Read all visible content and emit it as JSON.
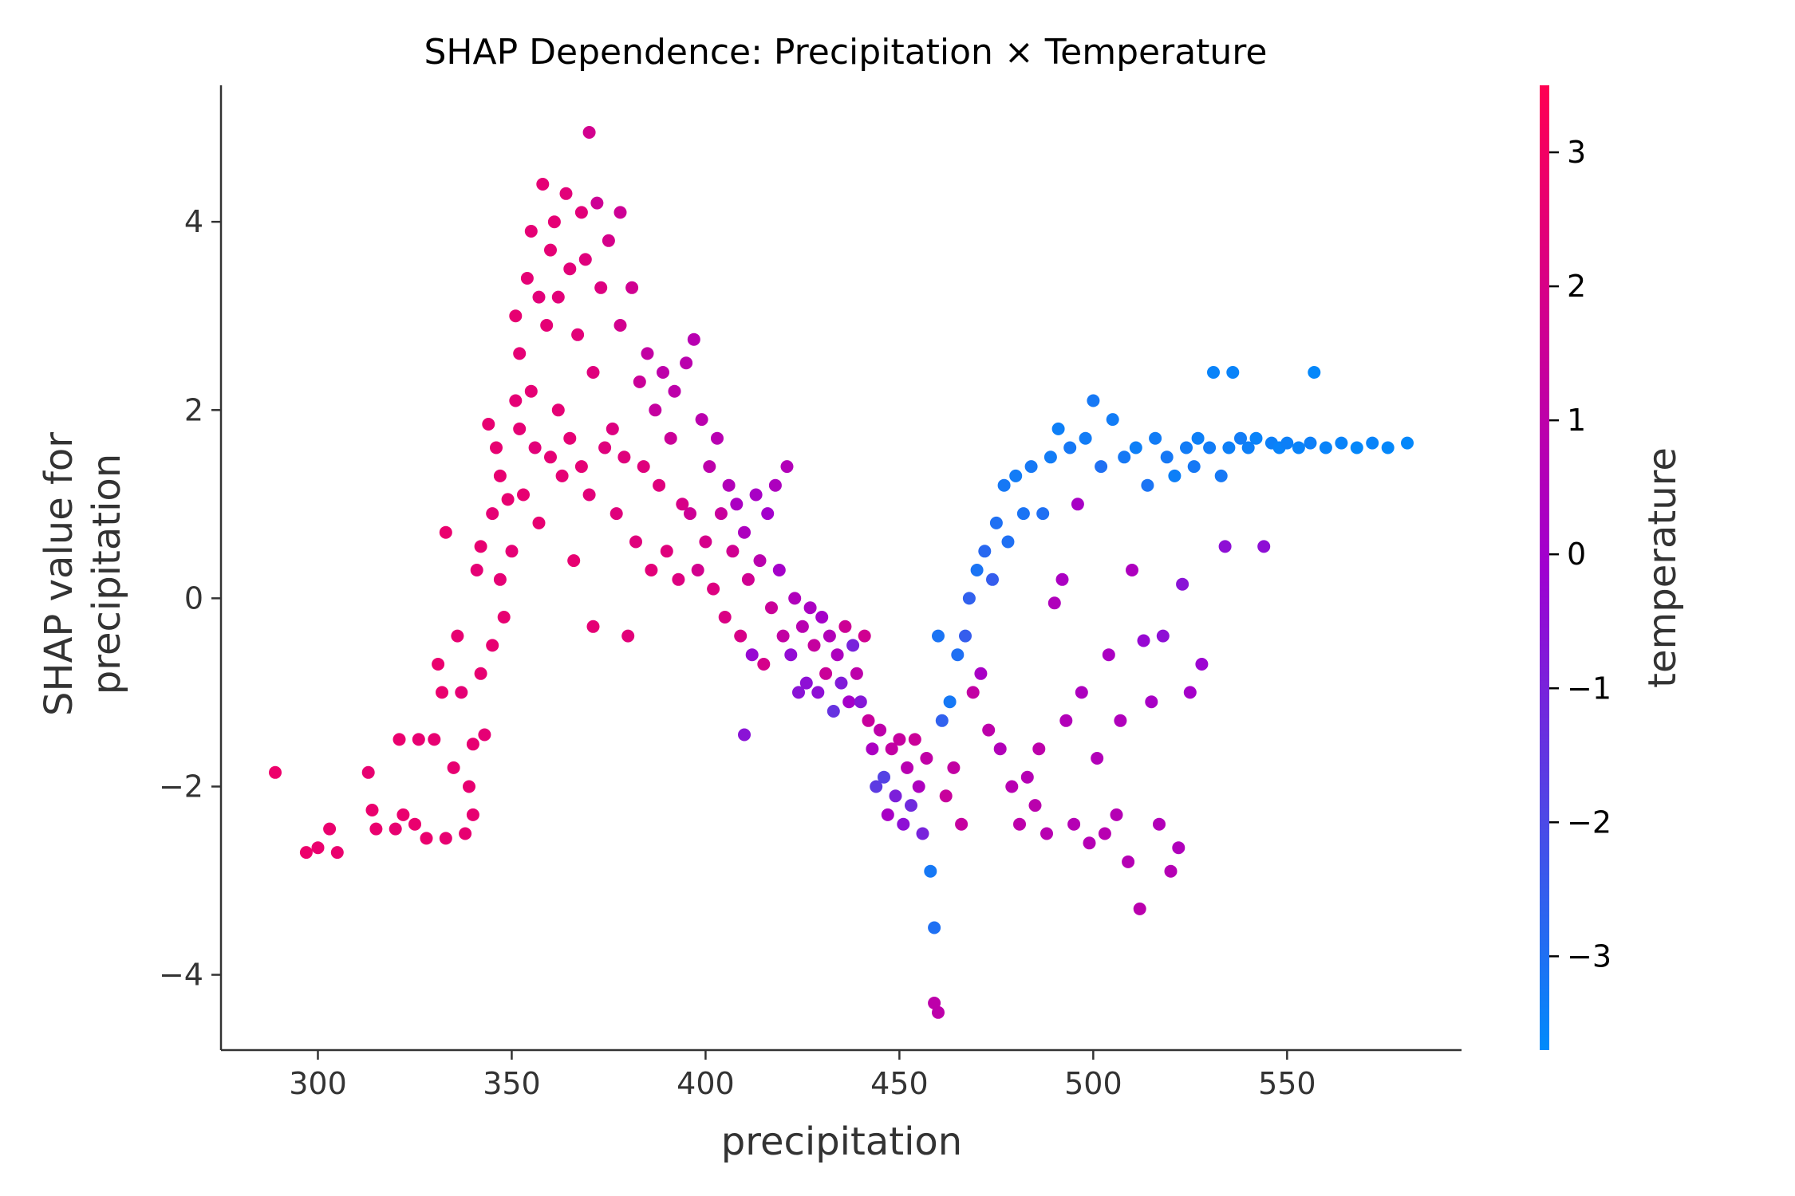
{
  "chart_data": {
    "type": "scatter",
    "title": "SHAP Dependence: Precipitation × Temperature",
    "xlabel": "precipitation",
    "ylabel": "SHAP value for\nprecipitation",
    "xlim": [
      275,
      595
    ],
    "ylim": [
      -4.8,
      5.45
    ],
    "x_ticks": [
      300,
      350,
      400,
      450,
      500,
      550
    ],
    "y_ticks": [
      -4,
      -2,
      0,
      2,
      4
    ],
    "x_tick_labels": [
      "300",
      "350",
      "400",
      "450",
      "500",
      "550"
    ],
    "y_tick_labels": [
      "−4",
      "−2",
      "0",
      "2",
      "4"
    ],
    "grid": false,
    "colorbar": {
      "label": "temperature",
      "range": [
        -3.7,
        3.5
      ],
      "ticks": [
        -3,
        -2,
        -1,
        0,
        1,
        2,
        3
      ],
      "tick_labels": [
        "−3",
        "−2",
        "−1",
        "0",
        "1",
        "2",
        "3"
      ],
      "colors": {
        "low": "#008bfb",
        "mid": "#a000d0",
        "high": "#ff0052"
      }
    },
    "points": [
      [
        289,
        -1.85,
        2.8
      ],
      [
        297,
        -2.7,
        2.8
      ],
      [
        300,
        -2.65,
        2.7
      ],
      [
        303,
        -2.45,
        2.7
      ],
      [
        305,
        -2.7,
        2.7
      ],
      [
        313,
        -1.85,
        2.6
      ],
      [
        314,
        -2.25,
        2.7
      ],
      [
        315,
        -2.45,
        2.7
      ],
      [
        320,
        -2.45,
        2.6
      ],
      [
        321,
        -1.5,
        2.7
      ],
      [
        322,
        -2.3,
        2.7
      ],
      [
        325,
        -2.4,
        2.7
      ],
      [
        326,
        -1.5,
        2.6
      ],
      [
        328,
        -2.55,
        2.7
      ],
      [
        330,
        -1.5,
        2.6
      ],
      [
        331,
        -0.7,
        2.7
      ],
      [
        332,
        -1.0,
        2.7
      ],
      [
        333,
        -2.55,
        2.6
      ],
      [
        333,
        0.7,
        2.7
      ],
      [
        335,
        -1.8,
        2.6
      ],
      [
        336,
        -0.4,
        2.6
      ],
      [
        337,
        -1.0,
        2.5
      ],
      [
        338,
        -2.5,
        2.6
      ],
      [
        339,
        -2.0,
        2.6
      ],
      [
        340,
        -2.3,
        2.6
      ],
      [
        340,
        -1.55,
        2.6
      ],
      [
        341,
        0.3,
        2.5
      ],
      [
        342,
        -0.8,
        2.6
      ],
      [
        342,
        0.55,
        2.6
      ],
      [
        343,
        -1.45,
        2.5
      ],
      [
        344,
        1.85,
        2.6
      ],
      [
        345,
        0.9,
        2.5
      ],
      [
        345,
        -0.5,
        2.6
      ],
      [
        346,
        1.6,
        2.6
      ],
      [
        347,
        1.3,
        2.6
      ],
      [
        347,
        0.2,
        2.5
      ],
      [
        348,
        -0.2,
        2.6
      ],
      [
        349,
        1.05,
        2.6
      ],
      [
        350,
        0.5,
        2.5
      ],
      [
        351,
        2.1,
        2.5
      ],
      [
        351,
        3.0,
        2.6
      ],
      [
        352,
        1.8,
        2.5
      ],
      [
        352,
        2.6,
        2.5
      ],
      [
        353,
        1.1,
        2.6
      ],
      [
        354,
        3.4,
        2.5
      ],
      [
        355,
        2.2,
        2.5
      ],
      [
        355,
        3.9,
        2.5
      ],
      [
        356,
        1.6,
        2.4
      ],
      [
        357,
        0.8,
        2.6
      ],
      [
        357,
        3.2,
        2.4
      ],
      [
        358,
        4.4,
        2.5
      ],
      [
        359,
        2.9,
        2.5
      ],
      [
        360,
        1.5,
        2.5
      ],
      [
        360,
        3.7,
        2.5
      ],
      [
        361,
        4.0,
        2.5
      ],
      [
        362,
        2.0,
        2.5
      ],
      [
        362,
        3.2,
        2.4
      ],
      [
        363,
        1.3,
        2.5
      ],
      [
        364,
        4.3,
        2.4
      ],
      [
        365,
        1.7,
        2.5
      ],
      [
        365,
        3.5,
        2.4
      ],
      [
        366,
        0.4,
        2.6
      ],
      [
        367,
        2.8,
        2.4
      ],
      [
        368,
        1.4,
        2.5
      ],
      [
        368,
        4.1,
        2.4
      ],
      [
        369,
        3.6,
        2.3
      ],
      [
        370,
        1.1,
        2.4
      ],
      [
        370,
        4.95,
        1.8
      ],
      [
        371,
        2.4,
        2.3
      ],
      [
        371,
        -0.3,
        2.5
      ],
      [
        372,
        4.2,
        1.6
      ],
      [
        373,
        3.3,
        2.2
      ],
      [
        374,
        1.6,
        2.3
      ],
      [
        375,
        3.8,
        1.9
      ],
      [
        376,
        1.8,
        2.2
      ],
      [
        377,
        0.9,
        2.3
      ],
      [
        378,
        2.9,
        1.8
      ],
      [
        378,
        4.1,
        1.6
      ],
      [
        379,
        1.5,
        2.3
      ],
      [
        380,
        -0.4,
        2.4
      ],
      [
        381,
        3.3,
        1.7
      ],
      [
        382,
        0.6,
        2.3
      ],
      [
        383,
        2.3,
        1.5
      ],
      [
        384,
        1.4,
        2.3
      ],
      [
        385,
        2.6,
        1.2
      ],
      [
        386,
        0.3,
        2.4
      ],
      [
        387,
        2.0,
        1.3
      ],
      [
        388,
        1.2,
        2.3
      ],
      [
        389,
        2.4,
        1.0
      ],
      [
        390,
        0.5,
        2.3
      ],
      [
        391,
        1.7,
        1.5
      ],
      [
        392,
        2.2,
        1.0
      ],
      [
        393,
        0.2,
        2.2
      ],
      [
        394,
        1.0,
        2.0
      ],
      [
        395,
        2.5,
        0.9
      ],
      [
        396,
        0.9,
        1.6
      ],
      [
        397,
        2.75,
        0.8
      ],
      [
        398,
        0.3,
        1.8
      ],
      [
        399,
        1.9,
        0.9
      ],
      [
        400,
        0.6,
        1.9
      ],
      [
        401,
        1.4,
        1.0
      ],
      [
        402,
        0.1,
        2.2
      ],
      [
        403,
        1.7,
        0.8
      ],
      [
        404,
        0.9,
        1.4
      ],
      [
        405,
        -0.2,
        2.1
      ],
      [
        406,
        1.2,
        0.6
      ],
      [
        407,
        0.5,
        1.7
      ],
      [
        408,
        1.0,
        0.3
      ],
      [
        409,
        -0.4,
        2.0
      ],
      [
        410,
        0.7,
        0.4
      ],
      [
        410,
        -1.45,
        -0.6
      ],
      [
        411,
        0.2,
        1.7
      ],
      [
        412,
        -0.6,
        -0.3
      ],
      [
        413,
        1.1,
        0.2
      ],
      [
        414,
        0.4,
        0.9
      ],
      [
        415,
        -0.7,
        1.9
      ],
      [
        416,
        0.9,
        0.0
      ],
      [
        417,
        -0.1,
        1.5
      ],
      [
        418,
        1.2,
        0.4
      ],
      [
        419,
        0.3,
        0.1
      ],
      [
        420,
        -0.4,
        1.2
      ],
      [
        421,
        1.4,
        0.6
      ],
      [
        422,
        -0.6,
        -0.4
      ],
      [
        423,
        0.0,
        0.5
      ],
      [
        424,
        -1.0,
        -0.6
      ],
      [
        425,
        -0.3,
        0.8
      ],
      [
        426,
        -0.9,
        -0.5
      ],
      [
        427,
        -0.1,
        0.3
      ],
      [
        428,
        -0.5,
        1.3
      ],
      [
        429,
        -1.0,
        -0.5
      ],
      [
        430,
        -0.2,
        0.1
      ],
      [
        431,
        -0.8,
        1.5
      ],
      [
        432,
        -0.4,
        0.6
      ],
      [
        433,
        -1.2,
        -1.4
      ],
      [
        434,
        -0.6,
        0.4
      ],
      [
        435,
        -0.9,
        -0.8
      ],
      [
        436,
        -0.3,
        1.6
      ],
      [
        437,
        -1.1,
        0.1
      ],
      [
        438,
        -0.5,
        -1.0
      ],
      [
        439,
        -0.8,
        1.0
      ],
      [
        440,
        -1.1,
        -0.7
      ],
      [
        441,
        -0.4,
        1.7
      ],
      [
        442,
        -1.3,
        1.4
      ],
      [
        443,
        -1.6,
        0.3
      ],
      [
        444,
        -2.0,
        -1.6
      ],
      [
        445,
        -1.4,
        1.0
      ],
      [
        446,
        -1.9,
        -1.8
      ],
      [
        447,
        -2.3,
        0.2
      ],
      [
        448,
        -1.6,
        1.2
      ],
      [
        449,
        -2.1,
        -0.9
      ],
      [
        450,
        -1.5,
        1.3
      ],
      [
        451,
        -2.4,
        -0.5
      ],
      [
        452,
        -1.8,
        0.8
      ],
      [
        453,
        -2.2,
        -1.2
      ],
      [
        454,
        -1.5,
        1.5
      ],
      [
        455,
        -2.0,
        0.4
      ],
      [
        456,
        -2.5,
        -1.0
      ],
      [
        457,
        -1.7,
        1.1
      ],
      [
        458,
        -2.9,
        -3.2
      ],
      [
        459,
        -3.5,
        -3.0
      ],
      [
        459,
        -4.3,
        1.0
      ],
      [
        460,
        -4.4,
        1.0
      ],
      [
        460,
        -0.4,
        -3.1
      ],
      [
        461,
        -1.3,
        -2.6
      ],
      [
        462,
        -2.1,
        1.4
      ],
      [
        463,
        -1.1,
        -3.2
      ],
      [
        464,
        -1.8,
        1.2
      ],
      [
        465,
        -0.6,
        -3.0
      ],
      [
        466,
        -2.4,
        1.3
      ],
      [
        467,
        -0.4,
        -2.5
      ],
      [
        468,
        0.0,
        -2.6
      ],
      [
        469,
        -1.0,
        1.2
      ],
      [
        470,
        0.3,
        -3.1
      ],
      [
        471,
        -0.8,
        0.2
      ],
      [
        472,
        0.5,
        -2.8
      ],
      [
        473,
        -1.4,
        1.0
      ],
      [
        474,
        0.2,
        -2.5
      ],
      [
        475,
        0.8,
        -3.0
      ],
      [
        476,
        -1.6,
        0.6
      ],
      [
        477,
        1.2,
        -3.2
      ],
      [
        478,
        0.6,
        -3.0
      ],
      [
        479,
        -2.0,
        0.8
      ],
      [
        480,
        1.3,
        -3.3
      ],
      [
        481,
        -2.4,
        1.0
      ],
      [
        482,
        0.9,
        -3.1
      ],
      [
        483,
        -1.9,
        0.7
      ],
      [
        484,
        1.4,
        -3.2
      ],
      [
        485,
        -2.2,
        0.9
      ],
      [
        486,
        -1.6,
        1.0
      ],
      [
        487,
        0.9,
        -3.0
      ],
      [
        488,
        -2.5,
        0.8
      ],
      [
        489,
        1.5,
        -3.3
      ],
      [
        490,
        -0.05,
        0.5
      ],
      [
        491,
        1.8,
        -3.4
      ],
      [
        492,
        0.2,
        0.3
      ],
      [
        493,
        -1.3,
        0.6
      ],
      [
        494,
        1.6,
        -3.2
      ],
      [
        495,
        -2.4,
        0.7
      ],
      [
        496,
        1.0,
        0.2
      ],
      [
        497,
        -1.0,
        0.4
      ],
      [
        498,
        1.7,
        -3.3
      ],
      [
        499,
        -2.6,
        0.7
      ],
      [
        500,
        2.1,
        -3.2
      ],
      [
        501,
        -1.7,
        0.6
      ],
      [
        502,
        1.4,
        -3.0
      ],
      [
        503,
        -2.5,
        0.8
      ],
      [
        504,
        -0.6,
        0.3
      ],
      [
        505,
        1.9,
        -3.3
      ],
      [
        506,
        -2.3,
        0.7
      ],
      [
        507,
        -1.3,
        0.5
      ],
      [
        508,
        1.5,
        -3.2
      ],
      [
        509,
        -2.8,
        0.7
      ],
      [
        510,
        0.3,
        0.4
      ],
      [
        511,
        1.6,
        -3.4
      ],
      [
        512,
        -3.3,
        0.9
      ],
      [
        513,
        -0.45,
        -0.3
      ],
      [
        514,
        1.2,
        -3.1
      ],
      [
        515,
        -1.1,
        0.2
      ],
      [
        516,
        1.7,
        -3.3
      ],
      [
        517,
        -2.4,
        0.6
      ],
      [
        518,
        -0.4,
        -0.5
      ],
      [
        519,
        1.5,
        -3.2
      ],
      [
        520,
        -2.9,
        0.7
      ],
      [
        521,
        1.3,
        -3.4
      ],
      [
        522,
        -2.65,
        0.5
      ],
      [
        523,
        0.15,
        -0.6
      ],
      [
        524,
        1.6,
        -3.3
      ],
      [
        525,
        -1.0,
        0.1
      ],
      [
        526,
        1.4,
        -3.2
      ],
      [
        527,
        1.7,
        -3.4
      ],
      [
        528,
        -0.7,
        -0.2
      ],
      [
        530,
        1.6,
        -3.3
      ],
      [
        531,
        2.4,
        -3.5
      ],
      [
        533,
        1.3,
        -3.2
      ],
      [
        534,
        0.55,
        -0.5
      ],
      [
        535,
        1.6,
        -3.4
      ],
      [
        536,
        2.4,
        -3.5
      ],
      [
        538,
        1.7,
        -3.3
      ],
      [
        540,
        1.6,
        -3.4
      ],
      [
        542,
        1.7,
        -3.5
      ],
      [
        544,
        0.55,
        -0.5
      ],
      [
        546,
        1.65,
        -3.4
      ],
      [
        548,
        1.6,
        -3.5
      ],
      [
        550,
        1.65,
        -3.4
      ],
      [
        553,
        1.6,
        -3.5
      ],
      [
        556,
        1.65,
        -3.4
      ],
      [
        557,
        2.4,
        -3.6
      ],
      [
        560,
        1.6,
        -3.5
      ],
      [
        564,
        1.65,
        -3.5
      ],
      [
        568,
        1.6,
        -3.6
      ],
      [
        572,
        1.65,
        -3.5
      ],
      [
        576,
        1.6,
        -3.6
      ],
      [
        581,
        1.65,
        -3.6
      ]
    ]
  }
}
